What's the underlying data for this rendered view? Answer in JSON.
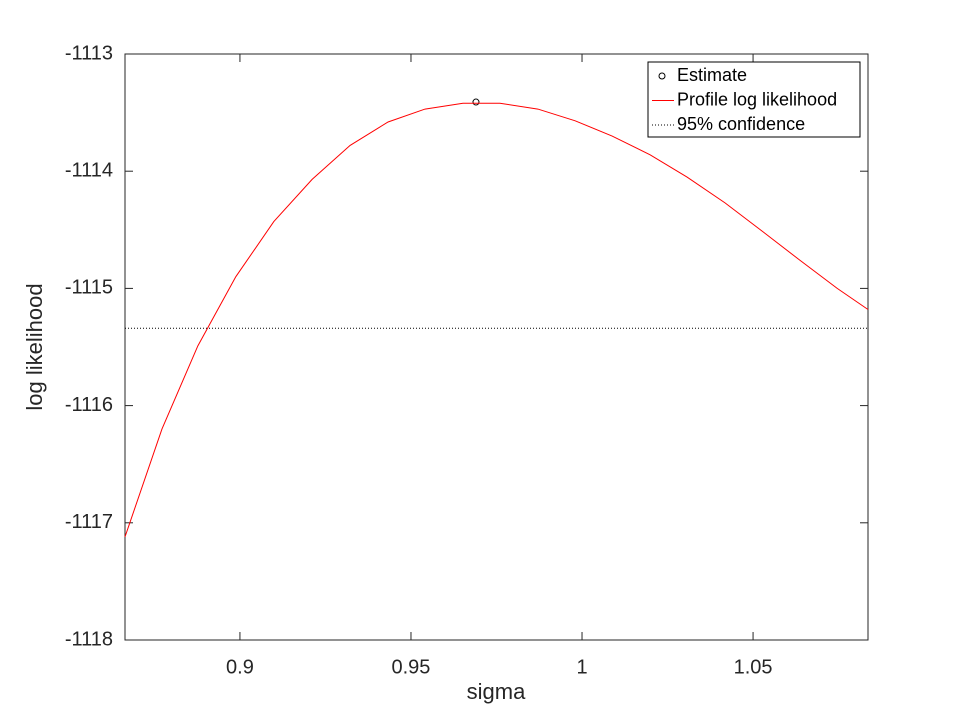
{
  "chart_data": {
    "type": "line",
    "xlabel": "sigma",
    "ylabel": "log likelihood",
    "xlim": [
      0.8664,
      1.0836
    ],
    "ylim": [
      -1118,
      -1113
    ],
    "xticks": [
      0.9,
      0.95,
      1,
      1.05
    ],
    "yticks": [
      -1118,
      -1117,
      -1116,
      -1115,
      -1114,
      -1113
    ],
    "legend": "top-right",
    "series": [
      {
        "name": "Estimate",
        "color": "#000000",
        "style": "marker",
        "x": [
          0.969
        ],
        "values": [
          -1113.41
        ]
      },
      {
        "name": "Profile log likelihood",
        "color": "#ff0000",
        "style": "line",
        "x": [
          0.8664,
          0.8772,
          0.8877,
          0.8988,
          0.9099,
          0.9211,
          0.9322,
          0.9433,
          0.9541,
          0.9652,
          0.976,
          0.9871,
          0.998,
          1.0088,
          1.0199,
          1.0307,
          1.0418,
          1.0526,
          1.0637,
          1.0746,
          1.0836
        ],
        "values": [
          -1117.12,
          -1116.2,
          -1115.49,
          -1114.9,
          -1114.43,
          -1114.07,
          -1113.78,
          -1113.58,
          -1113.47,
          -1113.42,
          -1113.42,
          -1113.47,
          -1113.57,
          -1113.7,
          -1113.86,
          -1114.05,
          -1114.27,
          -1114.51,
          -1114.76,
          -1115.0,
          -1115.18
        ]
      },
      {
        "name": "95% confidence",
        "color": "#000000",
        "style": "dotted",
        "x": [
          0.8664,
          1.0836
        ],
        "values": [
          -1115.34,
          -1115.34
        ]
      }
    ]
  }
}
